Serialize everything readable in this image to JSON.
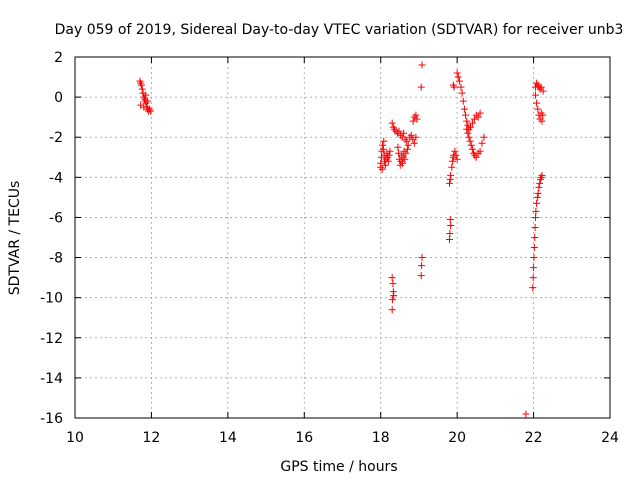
{
  "chart_data": {
    "type": "scatter",
    "title": "Day 059 of 2019, Sidereal Day-to-day VTEC variation (SDTVAR) for receiver unb3",
    "xlabel": "GPS time / hours",
    "ylabel": "SDTVAR / TECUs",
    "xlim": [
      10,
      24
    ],
    "ylim": [
      -16,
      2
    ],
    "xticks": [
      "10",
      "12",
      "14",
      "16",
      "18",
      "20",
      "22",
      "24"
    ],
    "yticks": [
      "2",
      "0",
      "-2",
      "-4",
      "-6",
      "-8",
      "-10",
      "-12",
      "-14",
      "-16"
    ],
    "grid": true,
    "marker": "plus",
    "color": "#ff0000",
    "series": [
      {
        "points": [
          [
            11.7,
            0.8
          ],
          [
            11.72,
            0.7
          ],
          [
            11.74,
            0.6
          ],
          [
            11.76,
            0.4
          ],
          [
            11.78,
            0.2
          ],
          [
            11.8,
            0.0
          ],
          [
            11.82,
            -0.1
          ],
          [
            11.84,
            -0.2
          ],
          [
            11.86,
            -0.3
          ],
          [
            11.88,
            -0.5
          ],
          [
            11.9,
            -0.6
          ],
          [
            11.92,
            -0.7
          ],
          [
            11.95,
            -0.6
          ],
          [
            11.98,
            -0.7
          ],
          [
            11.72,
            -0.4
          ],
          [
            11.8,
            -0.5
          ],
          [
            11.85,
            0.1
          ],
          [
            11.9,
            -0.2
          ],
          [
            18.0,
            -3.3
          ],
          [
            18.02,
            -3.0
          ],
          [
            18.03,
            -2.7
          ],
          [
            18.05,
            -2.4
          ],
          [
            18.07,
            -2.6
          ],
          [
            18.09,
            -2.9
          ],
          [
            18.1,
            -3.2
          ],
          [
            18.12,
            -3.4
          ],
          [
            18.14,
            -3.1
          ],
          [
            18.16,
            -2.8
          ],
          [
            18.18,
            -3.0
          ],
          [
            18.2,
            -3.2
          ],
          [
            18.22,
            -2.9
          ],
          [
            18.24,
            -2.7
          ],
          [
            18.0,
            -3.5
          ],
          [
            18.04,
            -3.6
          ],
          [
            18.08,
            -2.2
          ],
          [
            18.3,
            -1.3
          ],
          [
            18.33,
            -1.5
          ],
          [
            18.36,
            -1.6
          ],
          [
            18.4,
            -1.7
          ],
          [
            18.44,
            -1.8
          ],
          [
            18.48,
            -1.7
          ],
          [
            18.52,
            -1.9
          ],
          [
            18.56,
            -2.0
          ],
          [
            18.6,
            -1.8
          ],
          [
            18.64,
            -2.1
          ],
          [
            18.68,
            -2.2
          ],
          [
            18.72,
            -2.4
          ],
          [
            18.76,
            -2.0
          ],
          [
            18.8,
            -1.9
          ],
          [
            18.84,
            -2.1
          ],
          [
            18.88,
            -2.3
          ],
          [
            18.92,
            -2.0
          ],
          [
            18.45,
            -2.5
          ],
          [
            18.47,
            -2.8
          ],
          [
            18.49,
            -3.1
          ],
          [
            18.51,
            -3.4
          ],
          [
            18.53,
            -3.2
          ],
          [
            18.55,
            -2.9
          ],
          [
            18.57,
            -3.3
          ],
          [
            18.59,
            -3.0
          ],
          [
            18.61,
            -2.7
          ],
          [
            18.63,
            -3.1
          ],
          [
            18.66,
            -2.8
          ],
          [
            18.7,
            -2.6
          ],
          [
            18.85,
            -1.2
          ],
          [
            18.88,
            -1.0
          ],
          [
            18.92,
            -0.9
          ],
          [
            18.95,
            -1.1
          ],
          [
            18.3,
            -9.0
          ],
          [
            18.32,
            -9.3
          ],
          [
            18.33,
            -9.7
          ],
          [
            18.31,
            -10.1
          ],
          [
            18.3,
            -10.6
          ],
          [
            18.34,
            -9.9
          ],
          [
            19.08,
            1.6
          ],
          [
            19.06,
            0.5
          ],
          [
            19.08,
            -8.0
          ],
          [
            19.07,
            -8.4
          ],
          [
            19.06,
            -8.9
          ],
          [
            19.8,
            -4.3
          ],
          [
            19.83,
            -3.9
          ],
          [
            19.86,
            -3.5
          ],
          [
            19.88,
            -3.2
          ],
          [
            19.91,
            -2.9
          ],
          [
            19.94,
            -2.7
          ],
          [
            19.97,
            -2.9
          ],
          [
            20.0,
            -3.1
          ],
          [
            19.82,
            -4.1
          ],
          [
            19.9,
            -3.0
          ],
          [
            19.82,
            -6.1
          ],
          [
            19.83,
            -6.4
          ],
          [
            19.81,
            -6.8
          ],
          [
            19.8,
            -7.1
          ],
          [
            19.9,
            0.6
          ],
          [
            19.92,
            0.5
          ],
          [
            20.0,
            1.2
          ],
          [
            20.03,
            1.0
          ],
          [
            20.06,
            0.8
          ],
          [
            20.1,
            0.5
          ],
          [
            20.13,
            0.2
          ],
          [
            20.16,
            -0.2
          ],
          [
            20.19,
            -0.6
          ],
          [
            20.22,
            -0.9
          ],
          [
            20.25,
            -1.2
          ],
          [
            20.28,
            -1.4
          ],
          [
            20.31,
            -1.6
          ],
          [
            20.35,
            -1.5
          ],
          [
            20.4,
            -1.3
          ],
          [
            20.45,
            -1.1
          ],
          [
            20.5,
            -0.9
          ],
          [
            20.55,
            -1.0
          ],
          [
            20.6,
            -0.8
          ],
          [
            20.25,
            -1.6
          ],
          [
            20.28,
            -1.8
          ],
          [
            20.31,
            -2.0
          ],
          [
            20.34,
            -2.2
          ],
          [
            20.37,
            -2.4
          ],
          [
            20.4,
            -2.6
          ],
          [
            20.43,
            -2.8
          ],
          [
            20.46,
            -2.9
          ],
          [
            20.5,
            -3.0
          ],
          [
            20.55,
            -2.8
          ],
          [
            20.6,
            -2.7
          ],
          [
            20.65,
            -2.3
          ],
          [
            20.7,
            -2.0
          ],
          [
            22.05,
            0.5
          ],
          [
            22.08,
            0.7
          ],
          [
            22.11,
            0.6
          ],
          [
            22.14,
            0.5
          ],
          [
            22.17,
            0.4
          ],
          [
            22.2,
            0.5
          ],
          [
            22.25,
            0.3
          ],
          [
            22.05,
            0.1
          ],
          [
            22.08,
            -0.3
          ],
          [
            22.11,
            -0.6
          ],
          [
            22.14,
            -0.9
          ],
          [
            22.17,
            -1.1
          ],
          [
            22.2,
            -0.8
          ],
          [
            22.22,
            -1.2
          ],
          [
            22.24,
            -0.9
          ],
          [
            21.98,
            -9.5
          ],
          [
            21.99,
            -9.0
          ],
          [
            22.0,
            -8.5
          ],
          [
            22.01,
            -8.0
          ],
          [
            22.02,
            -7.5
          ],
          [
            22.03,
            -7.0
          ],
          [
            22.04,
            -6.5
          ],
          [
            22.05,
            -6.0
          ],
          [
            22.06,
            -5.7
          ],
          [
            22.08,
            -5.3
          ],
          [
            22.1,
            -5.0
          ],
          [
            22.12,
            -4.8
          ],
          [
            22.14,
            -4.5
          ],
          [
            22.16,
            -4.3
          ],
          [
            22.18,
            -4.1
          ],
          [
            22.2,
            -4.0
          ],
          [
            22.22,
            -3.9
          ],
          [
            21.8,
            -15.8
          ]
        ]
      }
    ]
  }
}
